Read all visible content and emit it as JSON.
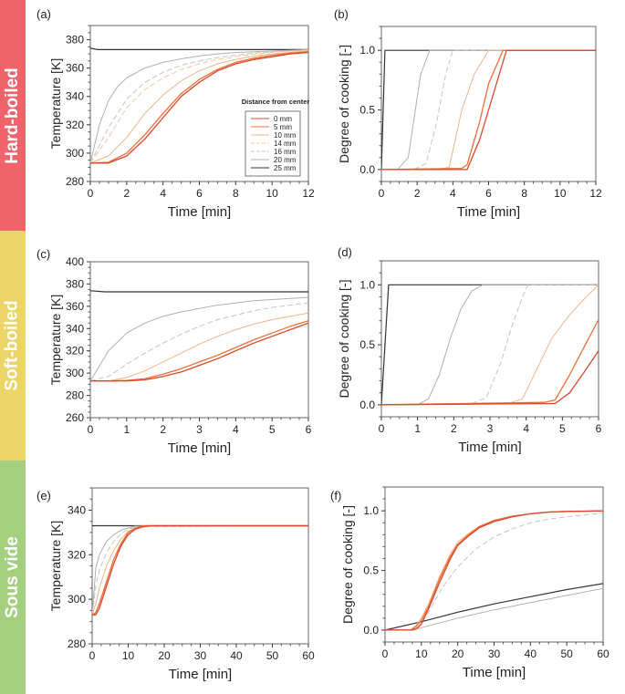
{
  "bands": [
    {
      "label": "Hard-boiled",
      "color": "#F0636B"
    },
    {
      "label": "Soft-boiled",
      "color": "#EBD566"
    },
    {
      "label": "Sous vide",
      "color": "#A3CF7E"
    }
  ],
  "legend": {
    "title": "Distance from center",
    "entries": [
      {
        "label": "0 mm",
        "color": "#D9482B",
        "dash": false
      },
      {
        "label": "5 mm",
        "color": "#E8703A",
        "dash": false
      },
      {
        "label": "10 mm",
        "color": "#F0B48A",
        "dash": false
      },
      {
        "label": "14 mm",
        "color": "#F3C7A6",
        "dash": true
      },
      {
        "label": "16 mm",
        "color": "#C9C2C2",
        "dash": true
      },
      {
        "label": "20 mm",
        "color": "#B3AEB0",
        "dash": false
      },
      {
        "label": "25 mm",
        "color": "#333333",
        "dash": false
      }
    ]
  },
  "chart_data": [
    {
      "id": "a",
      "panel_label": "(a)",
      "type": "line",
      "xlabel": "Time [min]",
      "ylabel": "Temperature [K]",
      "xlim": [
        0,
        12
      ],
      "ylim": [
        280,
        390
      ],
      "xticks": [
        0,
        2,
        4,
        6,
        8,
        10,
        12
      ],
      "yticks": [
        280,
        300,
        320,
        340,
        360,
        380
      ],
      "show_legend": true,
      "legend_position": "center-right",
      "series": [
        {
          "name": "0 mm",
          "x": [
            0,
            1,
            2,
            3,
            4,
            5,
            6,
            7,
            8,
            9,
            10,
            11,
            12
          ],
          "y": [
            293,
            293,
            298,
            310,
            325,
            340,
            350,
            358,
            363,
            366,
            368,
            370,
            371
          ]
        },
        {
          "name": "5 mm",
          "x": [
            0,
            1,
            2,
            3,
            4,
            5,
            6,
            7,
            8,
            9,
            10,
            11,
            12
          ],
          "y": [
            293,
            293.5,
            300,
            313,
            328,
            342,
            352,
            359,
            364,
            367,
            369,
            370.5,
            371.5
          ]
        },
        {
          "name": "10 mm",
          "x": [
            0,
            1,
            2,
            3,
            4,
            5,
            6,
            7,
            8,
            9,
            10,
            11,
            12
          ],
          "y": [
            293,
            298,
            311,
            328,
            341,
            351,
            358,
            363,
            366,
            368.5,
            370,
            371,
            372
          ]
        },
        {
          "name": "14 mm",
          "x": [
            0,
            1,
            2,
            3,
            4,
            5,
            6,
            7,
            8,
            9,
            10,
            11,
            12
          ],
          "y": [
            293,
            311,
            332,
            345,
            353,
            359,
            363,
            366,
            368,
            370,
            371,
            372,
            372.5
          ]
        },
        {
          "name": "16 mm",
          "x": [
            0,
            1,
            2,
            3,
            4,
            5,
            6,
            7,
            8,
            9,
            10,
            11,
            12
          ],
          "y": [
            293,
            318,
            338,
            350,
            357,
            362,
            365,
            367.5,
            369,
            370.5,
            371.5,
            372,
            372.5
          ]
        },
        {
          "name": "20 mm",
          "x": [
            0,
            0.5,
            1,
            1.5,
            2,
            3,
            4,
            5,
            6,
            7,
            8,
            10,
            12
          ],
          "y": [
            293,
            320,
            337,
            347,
            353,
            360,
            364,
            366.5,
            368.5,
            370,
            371,
            372,
            373
          ]
        },
        {
          "name": "25 mm",
          "x": [
            0,
            0.4,
            12
          ],
          "y": [
            374,
            373,
            373
          ]
        }
      ]
    },
    {
      "id": "b",
      "panel_label": "(b)",
      "type": "line",
      "xlabel": "Time [min]",
      "ylabel": "Degree of cooking [-]",
      "xlim": [
        0,
        12
      ],
      "ylim": [
        -0.1,
        1.2
      ],
      "xticks": [
        0,
        2,
        4,
        6,
        8,
        10,
        12
      ],
      "yticks": [
        0.0,
        0.5,
        1.0
      ],
      "series": [
        {
          "name": "0 mm",
          "x": [
            0,
            4.8,
            5.5,
            6.2,
            7.0,
            12
          ],
          "y": [
            0,
            0,
            0.25,
            0.6,
            1,
            1
          ]
        },
        {
          "name": "5 mm",
          "x": [
            0,
            4.5,
            4.8,
            5.5,
            6.0,
            6.8,
            12
          ],
          "y": [
            0,
            0.01,
            0.04,
            0.4,
            0.72,
            1,
            1
          ]
        },
        {
          "name": "10 mm",
          "x": [
            0,
            3.2,
            3.8,
            4.5,
            5.2,
            6.0,
            12
          ],
          "y": [
            0,
            0,
            0.02,
            0.5,
            0.8,
            1,
            1
          ]
        },
        {
          "name": "16 mm",
          "x": [
            0,
            1.8,
            2.5,
            3.1,
            3.6,
            4.0,
            12
          ],
          "y": [
            0,
            0,
            0.05,
            0.4,
            0.8,
            1,
            1
          ]
        },
        {
          "name": "20 mm",
          "x": [
            0,
            0.9,
            1.5,
            1.9,
            2.2,
            2.7,
            12
          ],
          "y": [
            0,
            0,
            0.1,
            0.5,
            0.8,
            1,
            1
          ]
        },
        {
          "name": "25 mm",
          "x": [
            0,
            0.2,
            12
          ],
          "y": [
            0,
            1,
            1
          ]
        }
      ]
    },
    {
      "id": "c",
      "panel_label": "(c)",
      "type": "line",
      "xlabel": "Time [min]",
      "ylabel": "Temperature [K]",
      "xlim": [
        0,
        6
      ],
      "ylim": [
        260,
        400
      ],
      "xticks": [
        0,
        1,
        2,
        3,
        4,
        5,
        6
      ],
      "yticks": [
        260,
        280,
        300,
        320,
        340,
        360,
        380,
        400
      ],
      "series": [
        {
          "name": "0 mm",
          "x": [
            0,
            0.5,
            1,
            1.5,
            2,
            2.5,
            3,
            3.5,
            4,
            4.5,
            5,
            5.5,
            6
          ],
          "y": [
            293,
            293,
            293,
            294,
            297,
            301,
            307,
            313,
            320,
            327,
            333,
            339,
            345
          ]
        },
        {
          "name": "5 mm",
          "x": [
            0,
            0.5,
            1,
            1.5,
            2,
            2.5,
            3,
            3.5,
            4,
            4.5,
            5,
            5.5,
            6
          ],
          "y": [
            293,
            293,
            293.5,
            295,
            299,
            304,
            310,
            316,
            323,
            330,
            336,
            342,
            347
          ]
        },
        {
          "name": "10 mm",
          "x": [
            0,
            0.5,
            1,
            1.5,
            2,
            2.5,
            3,
            3.5,
            4,
            4.5,
            5,
            5.5,
            6
          ],
          "y": [
            293,
            293,
            296,
            302,
            310,
            318,
            326,
            333,
            339,
            344,
            348,
            351,
            354
          ]
        },
        {
          "name": "16 mm",
          "x": [
            0,
            0.5,
            1,
            1.5,
            2,
            2.5,
            3,
            3.5,
            4,
            4.5,
            5,
            5.5,
            6
          ],
          "y": [
            293,
            297,
            308,
            318,
            327,
            335,
            342,
            348,
            352,
            356,
            359,
            361,
            363
          ]
        },
        {
          "name": "20 mm",
          "x": [
            0,
            0.5,
            1,
            1.5,
            2,
            2.5,
            3,
            3.5,
            4,
            4.5,
            5,
            5.5,
            6
          ],
          "y": [
            293,
            320,
            336,
            345,
            351,
            355,
            358,
            361,
            363,
            365,
            366,
            367,
            368
          ]
        },
        {
          "name": "25 mm",
          "x": [
            0,
            0.4,
            6
          ],
          "y": [
            374,
            373,
            373
          ]
        }
      ]
    },
    {
      "id": "d",
      "panel_label": "(d)",
      "type": "line",
      "xlabel": "Time [min]",
      "ylabel": "Degree of cooking [-]",
      "xlim": [
        0,
        6
      ],
      "ylim": [
        -0.1,
        1.2
      ],
      "xticks": [
        0,
        1,
        2,
        3,
        4,
        5,
        6
      ],
      "yticks": [
        0.0,
        0.5,
        1.0
      ],
      "series": [
        {
          "name": "0 mm",
          "x": [
            0,
            4.8,
            5.2,
            5.6,
            6
          ],
          "y": [
            0,
            0.01,
            0.1,
            0.27,
            0.45
          ]
        },
        {
          "name": "5 mm",
          "x": [
            0,
            4.5,
            4.8,
            5.2,
            5.6,
            6
          ],
          "y": [
            0,
            0.02,
            0.04,
            0.25,
            0.48,
            0.71
          ]
        },
        {
          "name": "10 mm",
          "x": [
            0,
            3.5,
            3.9,
            4.3,
            4.7,
            5.2,
            5.6,
            6
          ],
          "y": [
            0,
            0.01,
            0.05,
            0.3,
            0.55,
            0.75,
            0.88,
            1
          ]
        },
        {
          "name": "16 mm",
          "x": [
            0,
            2.5,
            2.9,
            3.3,
            3.6,
            3.9,
            4.05,
            6
          ],
          "y": [
            0,
            0.01,
            0.06,
            0.35,
            0.65,
            0.9,
            1,
            1
          ]
        },
        {
          "name": "20 mm",
          "x": [
            0,
            1.0,
            1.3,
            1.6,
            1.9,
            2.2,
            2.5,
            2.8,
            6
          ],
          "y": [
            0,
            0,
            0.05,
            0.25,
            0.55,
            0.8,
            0.95,
            1,
            1
          ]
        },
        {
          "name": "25 mm",
          "x": [
            0,
            0.2,
            6
          ],
          "y": [
            0,
            1,
            1
          ]
        }
      ]
    },
    {
      "id": "e",
      "panel_label": "(e)",
      "type": "line",
      "xlabel": "Time [min]",
      "ylabel": "Temperature [K]",
      "xlim": [
        0,
        60
      ],
      "ylim": [
        280,
        350
      ],
      "xticks": [
        0,
        10,
        20,
        30,
        40,
        50,
        60
      ],
      "yticks": [
        280,
        300,
        320,
        340
      ],
      "series": [
        {
          "name": "0 mm",
          "x": [
            0,
            1,
            2,
            4,
            6,
            8,
            10,
            12,
            14,
            16,
            60
          ],
          "y": [
            293,
            293,
            296,
            306,
            316,
            324,
            329,
            331.5,
            332.5,
            333,
            333
          ]
        },
        {
          "name": "5 mm",
          "x": [
            0,
            1,
            2,
            4,
            6,
            8,
            10,
            12,
            14,
            16,
            60
          ],
          "y": [
            293,
            294,
            298,
            308,
            318,
            325,
            330,
            332,
            333,
            333,
            333
          ]
        },
        {
          "name": "10 mm",
          "x": [
            0,
            1,
            2,
            4,
            6,
            8,
            10,
            12,
            14,
            60
          ],
          "y": [
            293,
            298,
            305,
            315,
            322,
            327,
            330.5,
            332,
            333,
            333
          ]
        },
        {
          "name": "16 mm",
          "x": [
            0,
            1,
            2,
            4,
            6,
            8,
            10,
            12,
            60
          ],
          "y": [
            293,
            306,
            313,
            321,
            326,
            329.5,
            331.5,
            332.5,
            333
          ]
        },
        {
          "name": "20 mm",
          "x": [
            0,
            1,
            2,
            4,
            6,
            8,
            10,
            12,
            60
          ],
          "y": [
            293,
            314,
            320,
            326,
            329,
            331,
            332,
            332.8,
            333
          ]
        },
        {
          "name": "25 mm",
          "x": [
            0,
            60
          ],
          "y": [
            333,
            333
          ]
        }
      ]
    },
    {
      "id": "f",
      "panel_label": "(f)",
      "type": "line",
      "xlabel": "Time [min]",
      "ylabel": "Degree of cooking [-]",
      "xlim": [
        0,
        60
      ],
      "ylim": [
        -0.1,
        1.2
      ],
      "xticks": [
        0,
        10,
        20,
        30,
        40,
        50,
        60
      ],
      "yticks": [
        0.0,
        0.5,
        1.0
      ],
      "series": [
        {
          "name": "0 mm",
          "x": [
            0,
            7.5,
            9,
            10,
            12,
            15,
            18,
            20,
            23,
            26,
            30,
            35,
            40,
            45,
            50,
            60
          ],
          "y": [
            0,
            0,
            0.02,
            0.05,
            0.18,
            0.4,
            0.6,
            0.71,
            0.79,
            0.86,
            0.91,
            0.95,
            0.975,
            0.99,
            0.995,
            1
          ]
        },
        {
          "name": "5 mm",
          "x": [
            0,
            7,
            8.5,
            10,
            12,
            15,
            18,
            20,
            23,
            26,
            30,
            35,
            40,
            45,
            50,
            60
          ],
          "y": [
            0,
            0,
            0.03,
            0.08,
            0.2,
            0.43,
            0.62,
            0.72,
            0.8,
            0.87,
            0.92,
            0.955,
            0.975,
            0.99,
            0.995,
            1
          ]
        },
        {
          "name": "10 mm",
          "x": [
            0,
            7,
            8.5,
            10,
            12,
            15,
            18,
            20,
            23,
            26,
            30,
            35,
            40,
            45,
            50,
            60
          ],
          "y": [
            0,
            0,
            0.04,
            0.1,
            0.22,
            0.45,
            0.64,
            0.74,
            0.81,
            0.87,
            0.92,
            0.955,
            0.975,
            0.99,
            0.995,
            1
          ]
        },
        {
          "name": "16 mm",
          "x": [
            0,
            8,
            10,
            12,
            15,
            18,
            20,
            25,
            30,
            35,
            40,
            45,
            50,
            55,
            60
          ],
          "y": [
            0,
            0,
            0.06,
            0.15,
            0.32,
            0.45,
            0.53,
            0.68,
            0.78,
            0.85,
            0.9,
            0.93,
            0.95,
            0.965,
            0.98
          ]
        },
        {
          "name": "20 mm",
          "x": [
            0,
            8,
            10,
            20,
            30,
            40,
            50,
            60
          ],
          "y": [
            0,
            0,
            0.02,
            0.1,
            0.17,
            0.23,
            0.29,
            0.35
          ]
        },
        {
          "name": "25 mm",
          "x": [
            0,
            10,
            20,
            30,
            40,
            50,
            60
          ],
          "y": [
            0,
            0.07,
            0.15,
            0.22,
            0.28,
            0.34,
            0.39
          ]
        }
      ]
    }
  ]
}
